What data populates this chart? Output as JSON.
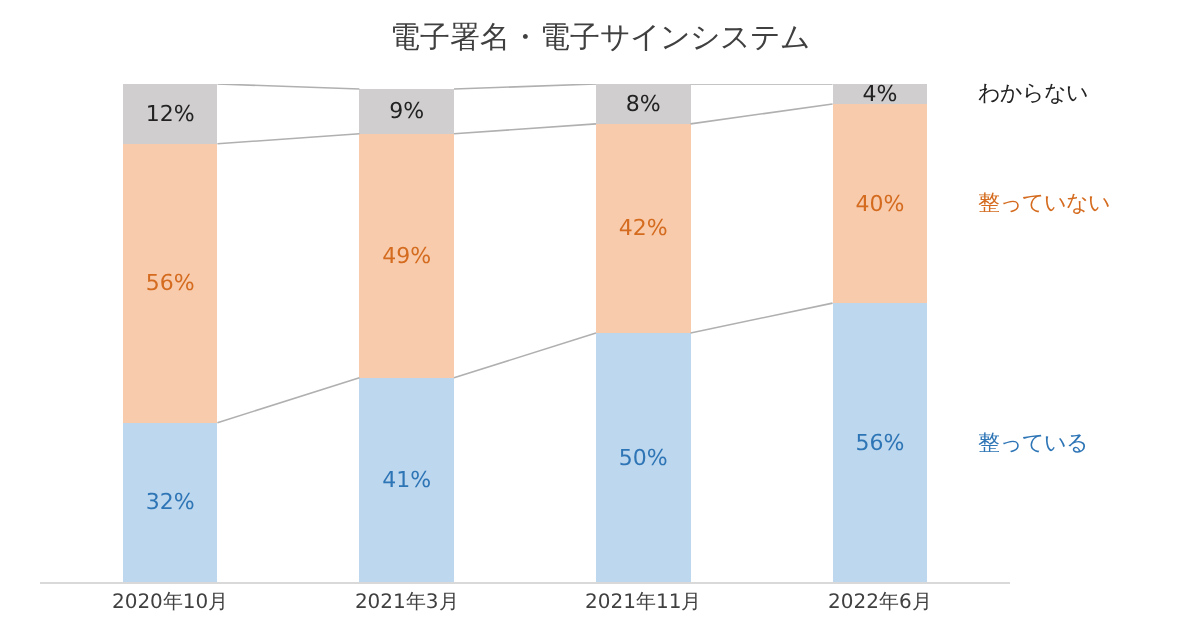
{
  "chart_data": {
    "type": "bar",
    "title": "電子署名・電子サインシステム",
    "stacked": true,
    "categories": [
      "2020年10月",
      "2021年3月",
      "2021年11月",
      "2022年6月"
    ],
    "series": [
      {
        "name": "整っている",
        "color": "#bdd7ee",
        "values": [
          32,
          41,
          50,
          56
        ],
        "value_labels": [
          "32%",
          "41%",
          "50%",
          "56%"
        ]
      },
      {
        "name": "整っていない",
        "color": "#f8cbad",
        "values": [
          56,
          49,
          42,
          40
        ],
        "value_labels": [
          "56%",
          "49%",
          "42%",
          "40%"
        ]
      },
      {
        "name": "わからない",
        "color": "#d0cece",
        "values": [
          12,
          9,
          8,
          4
        ],
        "value_labels": [
          "12%",
          "9%",
          "8%",
          "4%"
        ]
      }
    ]
  }
}
